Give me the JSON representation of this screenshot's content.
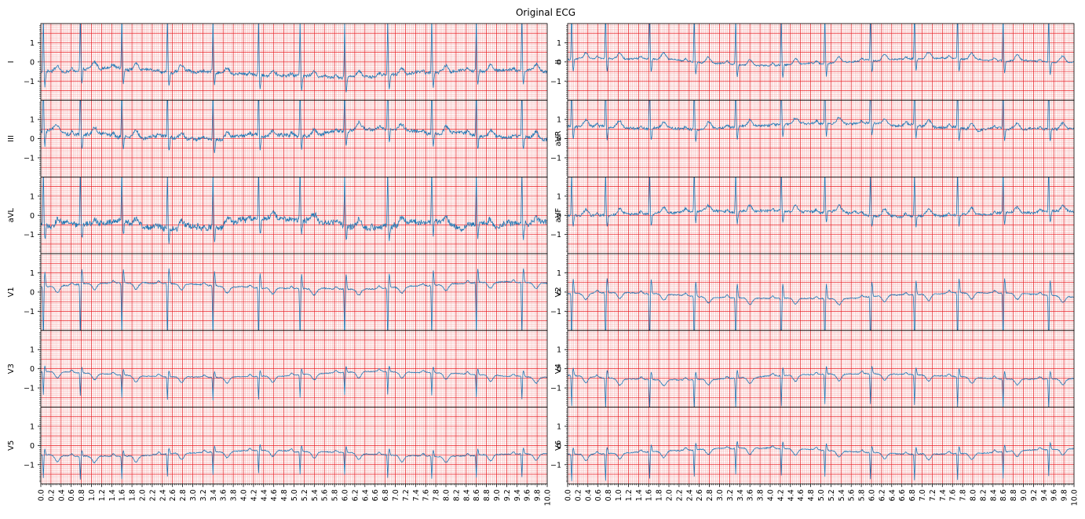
{
  "chart_data": {
    "type": "line",
    "title": "Original ECG",
    "layout": "6 rows x 2 columns",
    "xlim": [
      0.0,
      10.0
    ],
    "ylim": [
      -2.0,
      2.0
    ],
    "x_ticks": [
      "0.0",
      "0.2",
      "0.4",
      "0.6",
      "0.8",
      "1.0",
      "1.2",
      "1.4",
      "1.6",
      "1.8",
      "2.0",
      "2.2",
      "2.4",
      "2.6",
      "2.8",
      "3.0",
      "3.2",
      "3.4",
      "3.6",
      "3.8",
      "4.0",
      "4.2",
      "4.4",
      "4.6",
      "4.8",
      "5.0",
      "5.2",
      "5.4",
      "5.6",
      "5.8",
      "6.0",
      "6.2",
      "6.4",
      "6.6",
      "6.8",
      "7.0",
      "7.2",
      "7.4",
      "7.6",
      "7.8",
      "8.0",
      "8.2",
      "8.4",
      "8.6",
      "8.8",
      "9.0",
      "9.2",
      "9.4",
      "9.6",
      "9.8",
      "10.0"
    ],
    "y_ticks": [
      "1",
      "0",
      "−1"
    ],
    "grid": "major 0.2 s / 0.5 mV (red), minor 0.04 s / 0.1 mV (light red)",
    "grid_major_color": "#e8181d",
    "grid_minor_color": "#f4a0a0",
    "trace_color": "#1f77b4",
    "series": [
      {
        "name": "I",
        "column": 0,
        "row": 0,
        "baseline": -0.55,
        "r_peak_times": [
          0.05,
          0.78,
          1.6,
          2.5,
          3.4,
          4.3,
          5.12,
          6.0,
          6.85,
          7.72,
          8.6,
          9.5
        ],
        "amplitude": 3.0,
        "noise": 0.15
      },
      {
        "name": "II",
        "column": 1,
        "row": 0,
        "baseline": 0.0,
        "r_peak_times": [
          0.08,
          0.75,
          1.62,
          2.5,
          3.32,
          4.22,
          5.08,
          5.98,
          6.85,
          7.7,
          8.6,
          9.5
        ],
        "amplitude": 2.6,
        "noise": 0.08
      },
      {
        "name": "III",
        "column": 0,
        "row": 1,
        "baseline": 0.2,
        "r_peak_times": [
          0.05,
          0.78,
          1.6,
          2.5,
          3.4,
          4.3,
          5.12,
          6.0,
          6.85,
          7.72,
          8.6,
          9.5
        ],
        "amplitude": 2.8,
        "noise": 0.18
      },
      {
        "name": "aVR",
        "column": 1,
        "row": 1,
        "baseline": 0.6,
        "r_peak_times": [
          0.08,
          0.75,
          1.62,
          2.5,
          3.32,
          4.22,
          5.08,
          5.98,
          6.85,
          7.7,
          8.6,
          9.5
        ],
        "amplitude": 2.6,
        "noise": 0.12
      },
      {
        "name": "aVL",
        "column": 0,
        "row": 2,
        "baseline": -0.4,
        "r_peak_times": [
          0.05,
          0.78,
          1.6,
          2.5,
          3.4,
          4.3,
          5.12,
          6.0,
          6.85,
          7.72,
          8.6,
          9.5
        ],
        "amplitude": 3.0,
        "noise": 0.3
      },
      {
        "name": "aVF",
        "column": 1,
        "row": 2,
        "baseline": 0.1,
        "r_peak_times": [
          0.08,
          0.75,
          1.62,
          2.5,
          3.32,
          4.22,
          5.08,
          5.98,
          6.85,
          7.7,
          8.6,
          9.5
        ],
        "amplitude": 2.4,
        "noise": 0.12
      },
      {
        "name": "V1",
        "column": 0,
        "row": 3,
        "baseline": 0.3,
        "r_peak_times": [
          0.05,
          0.78,
          1.6,
          2.5,
          3.4,
          4.3,
          5.12,
          6.0,
          6.85,
          7.72,
          8.6,
          9.5
        ],
        "amplitude": -3.0,
        "noise": 0.06
      },
      {
        "name": "V2",
        "column": 1,
        "row": 3,
        "baseline": -0.2,
        "r_peak_times": [
          0.08,
          0.75,
          1.62,
          2.5,
          3.32,
          4.22,
          5.08,
          5.98,
          6.85,
          7.7,
          8.6,
          9.5
        ],
        "amplitude": -3.0,
        "noise": 0.05
      },
      {
        "name": "V3",
        "column": 0,
        "row": 4,
        "baseline": -0.3,
        "r_peak_times": [
          0.05,
          0.78,
          1.6,
          2.5,
          3.4,
          4.3,
          5.12,
          6.0,
          6.85,
          7.72,
          8.6,
          9.5
        ],
        "amplitude": -1.2,
        "noise": 0.04
      },
      {
        "name": "V4",
        "column": 1,
        "row": 4,
        "baseline": -0.4,
        "r_peak_times": [
          0.08,
          0.75,
          1.62,
          2.5,
          3.32,
          4.22,
          5.08,
          5.98,
          6.85,
          7.7,
          8.6,
          9.5
        ],
        "amplitude": -1.6,
        "noise": 0.05
      },
      {
        "name": "V5",
        "column": 0,
        "row": 5,
        "baseline": -0.4,
        "r_peak_times": [
          0.05,
          0.78,
          1.6,
          2.5,
          3.4,
          4.3,
          5.12,
          6.0,
          6.85,
          7.72,
          8.6,
          9.5
        ],
        "amplitude": -1.2,
        "noise": 0.05
      },
      {
        "name": "V6",
        "column": 1,
        "row": 5,
        "baseline": -0.3,
        "r_peak_times": [
          0.08,
          0.75,
          1.62,
          2.5,
          3.32,
          4.22,
          5.08,
          5.98,
          6.85,
          7.7,
          8.6,
          9.5
        ],
        "amplitude": -1.4,
        "noise": 0.05
      }
    ]
  }
}
